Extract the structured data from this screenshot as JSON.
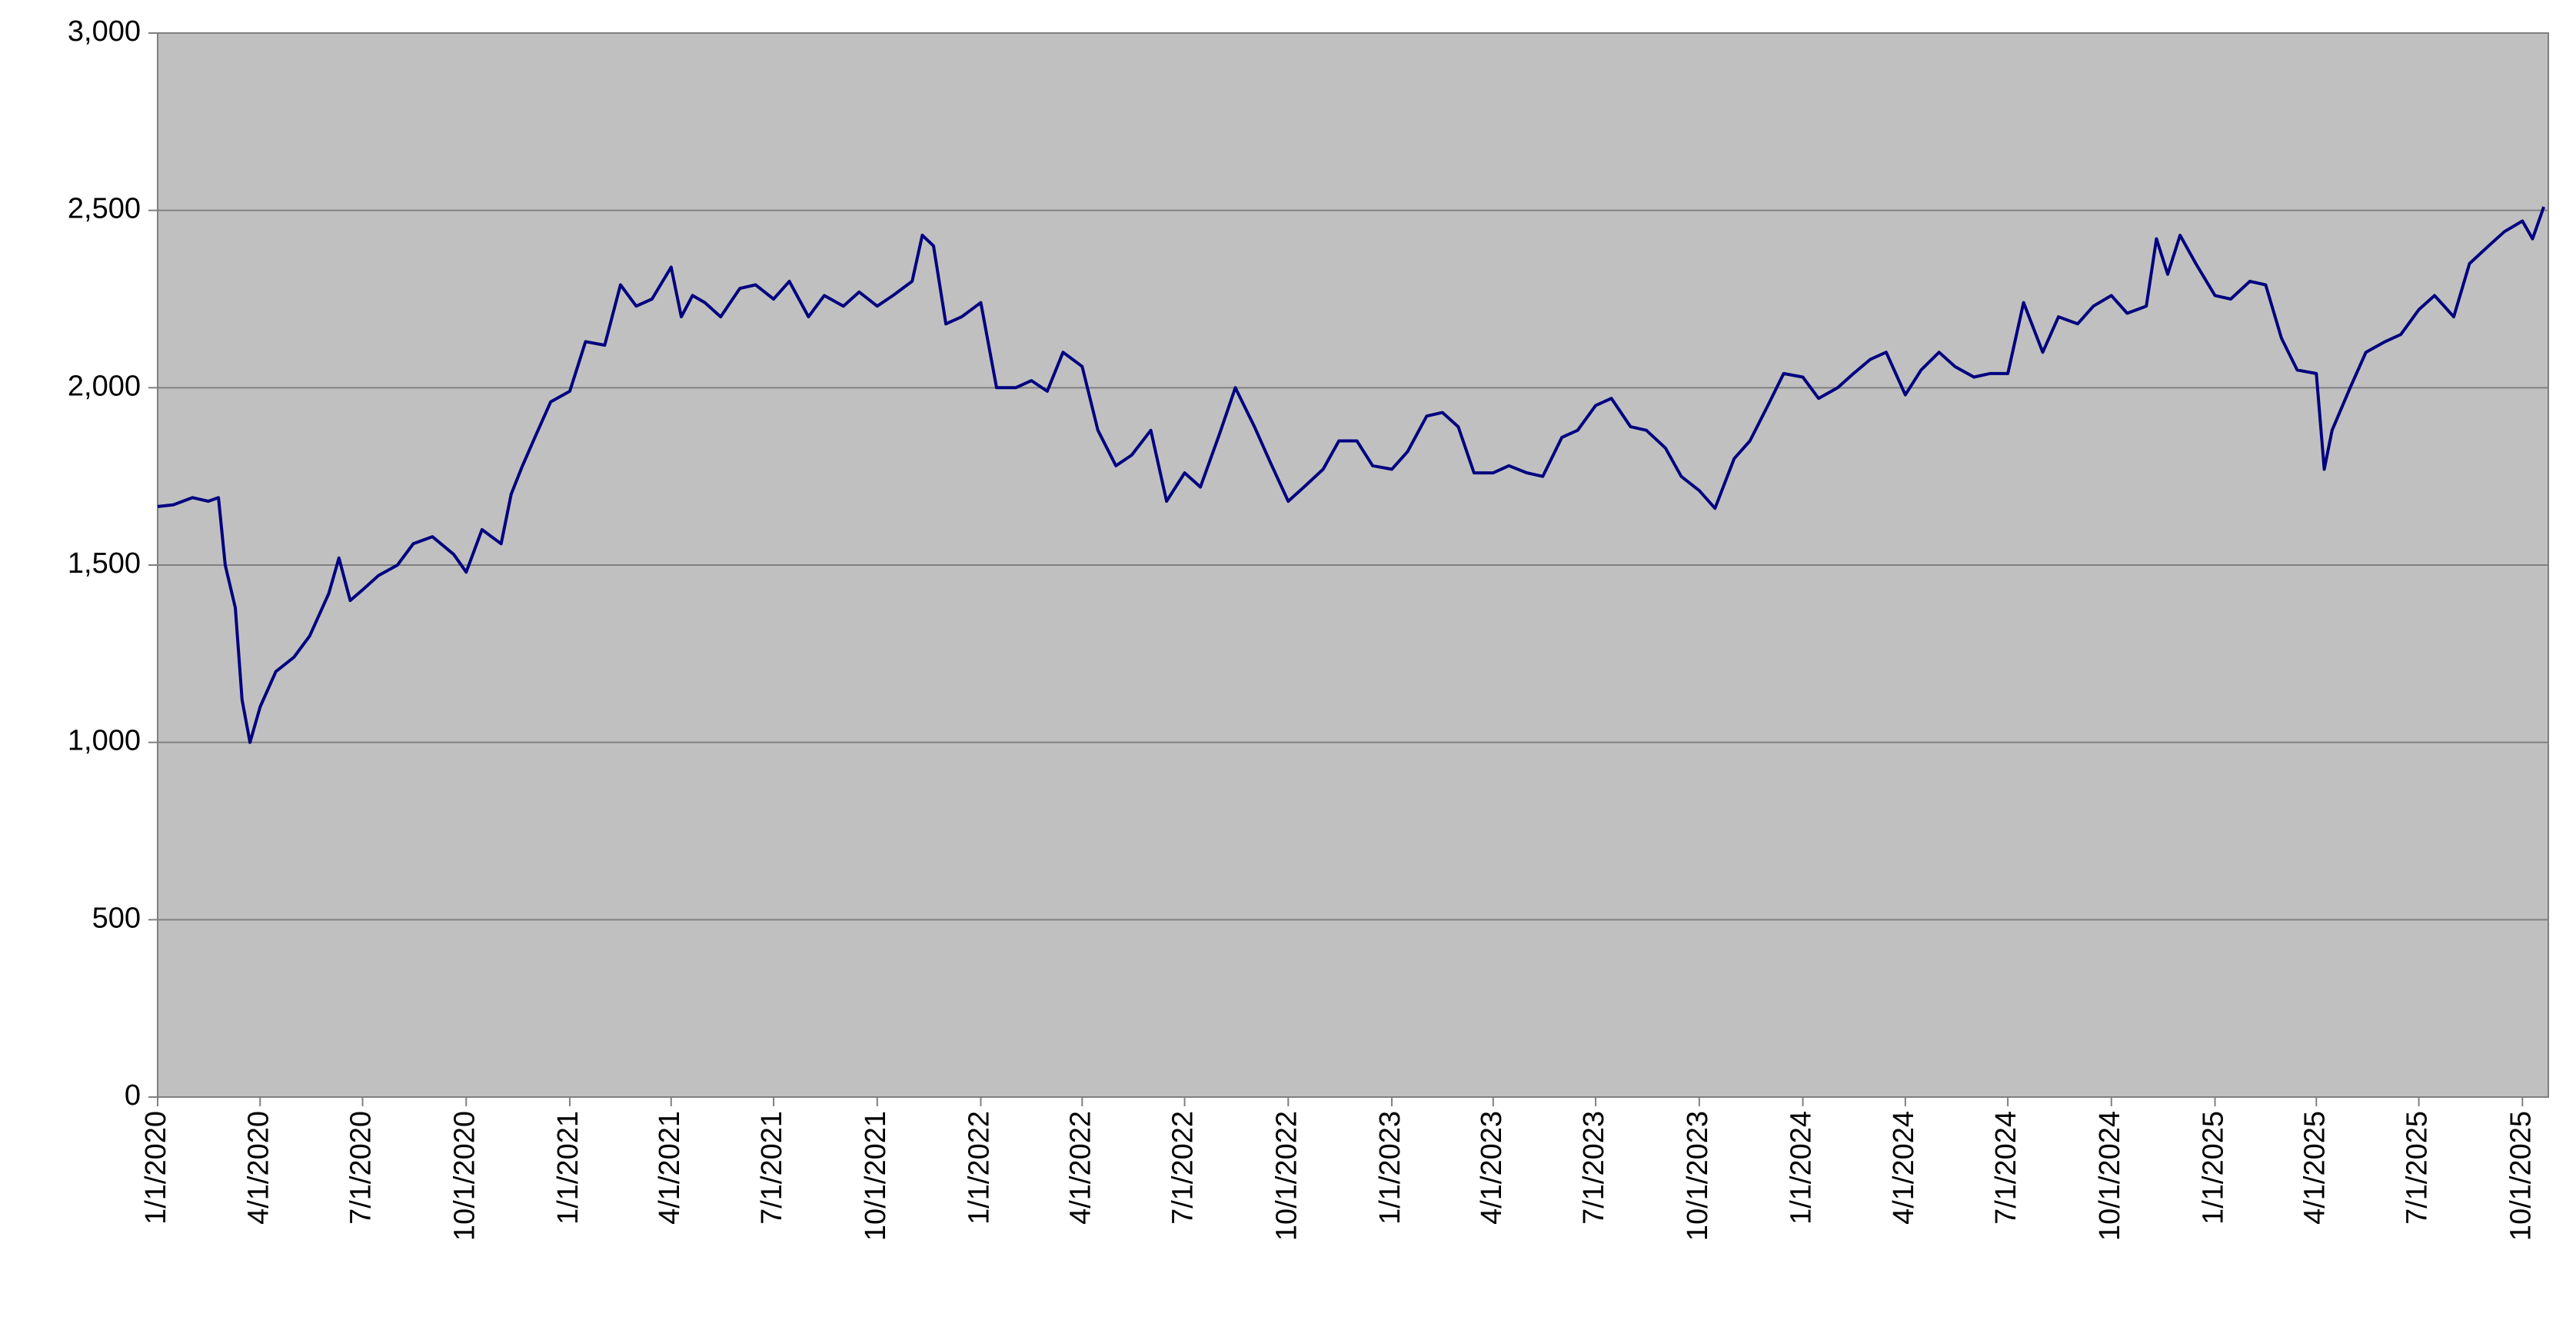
{
  "chart_data": {
    "type": "line",
    "color": "#000080",
    "background": "#c0c0c0",
    "grid": true,
    "ylim": [
      0,
      3000
    ],
    "yticks": [
      0,
      500,
      {
        "value": 1000,
        "label": "1,000"
      },
      {
        "value": 1500,
        "label": "1,500"
      },
      {
        "value": 2000,
        "label": "2,000"
      },
      {
        "value": 2500,
        "label": "2,500"
      },
      {
        "value": 3000,
        "label": "3,000"
      }
    ],
    "xlim": [
      "1/1/2020",
      "10/24/2025"
    ],
    "xticks": [
      "1/1/2020",
      "4/1/2020",
      "7/1/2020",
      "10/1/2020",
      "1/1/2021",
      "4/1/2021",
      "7/1/2021",
      "10/1/2021",
      "1/1/2022",
      "4/1/2022",
      "7/1/2022",
      "10/1/2022",
      "1/1/2023",
      "4/1/2023",
      "7/1/2023",
      "10/1/2023",
      "1/1/2024",
      "4/1/2024",
      "7/1/2024",
      "10/1/2024",
      "1/1/2025",
      "4/1/2025",
      "7/1/2025",
      "10/1/2025"
    ],
    "x": [
      "1/1/2020",
      "1/15/2020",
      "2/1/2020",
      "2/15/2020",
      "2/24/2020",
      "3/1/2020",
      "3/10/2020",
      "3/16/2020",
      "3/23/2020",
      "4/1/2020",
      "4/15/2020",
      "5/1/2020",
      "5/15/2020",
      "6/1/2020",
      "6/10/2020",
      "6/20/2020",
      "7/1/2020",
      "7/15/2020",
      "8/1/2020",
      "8/15/2020",
      "9/1/2020",
      "9/20/2020",
      "10/1/2020",
      "10/15/2020",
      "11/1/2020",
      "11/10/2020",
      "11/20/2020",
      "12/1/2020",
      "12/15/2020",
      "1/1/2021",
      "1/15/2021",
      "2/1/2021",
      "2/15/2021",
      "3/1/2021",
      "3/15/2021",
      "4/1/2021",
      "4/10/2021",
      "4/20/2021",
      "5/1/2021",
      "5/15/2021",
      "6/1/2021",
      "6/15/2021",
      "7/1/2021",
      "7/15/2021",
      "8/1/2021",
      "8/15/2021",
      "9/1/2021",
      "9/15/2021",
      "10/1/2021",
      "10/15/2021",
      "11/1/2021",
      "11/10/2021",
      "11/20/2021",
      "12/1/2021",
      "12/15/2021",
      "1/1/2022",
      "1/15/2022",
      "2/1/2022",
      "2/15/2022",
      "3/1/2022",
      "3/15/2022",
      "4/1/2022",
      "4/15/2022",
      "5/1/2022",
      "5/15/2022",
      "6/1/2022",
      "6/15/2022",
      "7/1/2022",
      "7/15/2022",
      "8/1/2022",
      "8/15/2022",
      "9/1/2022",
      "9/15/2022",
      "10/1/2022",
      "10/15/2022",
      "11/1/2022",
      "11/15/2022",
      "12/1/2022",
      "12/15/2022",
      "1/1/2023",
      "1/15/2023",
      "2/1/2023",
      "2/15/2023",
      "3/1/2023",
      "3/15/2023",
      "4/1/2023",
      "4/15/2023",
      "5/1/2023",
      "5/15/2023",
      "6/1/2023",
      "6/15/2023",
      "7/1/2023",
      "7/15/2023",
      "8/1/2023",
      "8/15/2023",
      "9/1/2023",
      "9/15/2023",
      "10/1/2023",
      "10/15/2023",
      "11/1/2023",
      "11/15/2023",
      "12/1/2023",
      "12/15/2023",
      "1/1/2024",
      "1/15/2024",
      "2/1/2024",
      "2/15/2024",
      "3/1/2024",
      "3/15/2024",
      "4/1/2024",
      "4/15/2024",
      "5/1/2024",
      "5/15/2024",
      "6/1/2024",
      "6/15/2024",
      "7/1/2024",
      "7/15/2024",
      "8/1/2024",
      "8/15/2024",
      "9/1/2024",
      "9/15/2024",
      "10/1/2024",
      "10/15/2024",
      "11/1/2024",
      "11/10/2024",
      "11/20/2024",
      "12/1/2024",
      "12/15/2024",
      "1/1/2025",
      "1/15/2025",
      "2/1/2025",
      "2/15/2025",
      "3/1/2025",
      "3/15/2025",
      "4/1/2025",
      "4/8/2025",
      "4/15/2025",
      "5/1/2025",
      "5/15/2025",
      "6/1/2025",
      "6/15/2025",
      "7/1/2025",
      "7/15/2025",
      "8/1/2025",
      "8/15/2025",
      "9/1/2025",
      "9/15/2025",
      "10/1/2025",
      "10/10/2025",
      "10/20/2025"
    ],
    "values": [
      1665,
      1670,
      1690,
      1680,
      1690,
      1500,
      1380,
      1120,
      1000,
      1100,
      1200,
      1240,
      1300,
      1420,
      1520,
      1400,
      1430,
      1470,
      1500,
      1560,
      1580,
      1530,
      1480,
      1600,
      1560,
      1700,
      1780,
      1860,
      1960,
      1990,
      2130,
      2120,
      2290,
      2230,
      2250,
      2340,
      2200,
      2260,
      2240,
      2200,
      2280,
      2290,
      2250,
      2300,
      2200,
      2260,
      2230,
      2270,
      2230,
      2260,
      2300,
      2430,
      2400,
      2180,
      2200,
      2240,
      2000,
      2000,
      2020,
      1990,
      2100,
      2060,
      1880,
      1780,
      1810,
      1880,
      1680,
      1760,
      1720,
      1870,
      2000,
      1890,
      1790,
      1680,
      1720,
      1770,
      1850,
      1850,
      1780,
      1770,
      1820,
      1920,
      1930,
      1890,
      1760,
      1760,
      1780,
      1760,
      1750,
      1860,
      1880,
      1950,
      1970,
      1890,
      1880,
      1830,
      1750,
      1710,
      1660,
      1800,
      1850,
      1950,
      2040,
      2030,
      1970,
      2000,
      2040,
      2080,
      2100,
      1980,
      2050,
      2100,
      2060,
      2030,
      2040,
      2040,
      2240,
      2100,
      2200,
      2180,
      2230,
      2260,
      2210,
      2230,
      2420,
      2320,
      2430,
      2350,
      2260,
      2250,
      2300,
      2290,
      2140,
      2050,
      2040,
      1770,
      1880,
      2000,
      2100,
      2130,
      2150,
      2220,
      2260,
      2200,
      2350,
      2400,
      2440,
      2470,
      2420,
      2510
    ]
  }
}
